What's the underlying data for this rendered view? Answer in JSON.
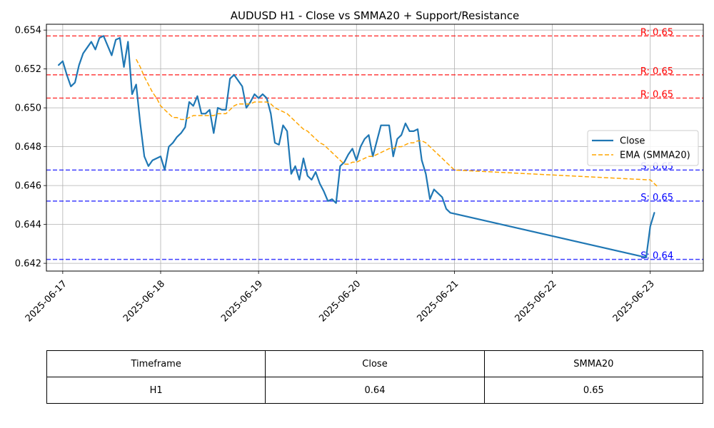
{
  "chart_data": {
    "type": "line",
    "title": "AUDUSD H1 - Close vs SMMA20 + Support/Resistance",
    "xlabel": "",
    "ylabel": "",
    "x_ticks": [
      "2025-06-17",
      "2025-06-18",
      "2025-06-19",
      "2025-06-20",
      "2025-06-21",
      "2025-06-22",
      "2025-06-23"
    ],
    "y_ticks": [
      "0.642",
      "0.644",
      "0.646",
      "0.648",
      "0.650",
      "0.652",
      "0.654"
    ],
    "xlim": [
      "2025-06-16 20:00",
      "2025-06-23 13:00"
    ],
    "ylim": [
      0.6416,
      0.6543
    ],
    "grid": true,
    "legend_position": "center-right",
    "series": [
      {
        "name": "Close",
        "color": "#1f77b4",
        "style": "solid",
        "points": [
          [
            "2025-06-16 23:00",
            0.6522
          ],
          [
            "2025-06-17 00:00",
            0.6524
          ],
          [
            "2025-06-17 01:00",
            0.6517
          ],
          [
            "2025-06-17 02:00",
            0.6511
          ],
          [
            "2025-06-17 03:00",
            0.6513
          ],
          [
            "2025-06-17 04:00",
            0.6522
          ],
          [
            "2025-06-17 05:00",
            0.6528
          ],
          [
            "2025-06-17 06:00",
            0.6531
          ],
          [
            "2025-06-17 07:00",
            0.6534
          ],
          [
            "2025-06-17 08:00",
            0.653
          ],
          [
            "2025-06-17 09:00",
            0.6536
          ],
          [
            "2025-06-17 10:00",
            0.6537
          ],
          [
            "2025-06-17 11:00",
            0.6532
          ],
          [
            "2025-06-17 12:00",
            0.6527
          ],
          [
            "2025-06-17 13:00",
            0.6535
          ],
          [
            "2025-06-17 14:00",
            0.6536
          ],
          [
            "2025-06-17 15:00",
            0.6521
          ],
          [
            "2025-06-17 16:00",
            0.6534
          ],
          [
            "2025-06-17 17:00",
            0.6507
          ],
          [
            "2025-06-17 18:00",
            0.6512
          ],
          [
            "2025-06-17 19:00",
            0.6492
          ],
          [
            "2025-06-17 20:00",
            0.6475
          ],
          [
            "2025-06-17 21:00",
            0.647
          ],
          [
            "2025-06-17 22:00",
            0.6473
          ],
          [
            "2025-06-17 23:00",
            0.6474
          ],
          [
            "2025-06-18 00:00",
            0.6475
          ],
          [
            "2025-06-18 01:00",
            0.6468
          ],
          [
            "2025-06-18 02:00",
            0.648
          ],
          [
            "2025-06-18 03:00",
            0.6482
          ],
          [
            "2025-06-18 04:00",
            0.6485
          ],
          [
            "2025-06-18 05:00",
            0.6487
          ],
          [
            "2025-06-18 06:00",
            0.649
          ],
          [
            "2025-06-18 07:00",
            0.6503
          ],
          [
            "2025-06-18 08:00",
            0.6501
          ],
          [
            "2025-06-18 09:00",
            0.6506
          ],
          [
            "2025-06-18 10:00",
            0.6497
          ],
          [
            "2025-06-18 11:00",
            0.6497
          ],
          [
            "2025-06-18 12:00",
            0.6499
          ],
          [
            "2025-06-18 13:00",
            0.6487
          ],
          [
            "2025-06-18 14:00",
            0.65
          ],
          [
            "2025-06-18 15:00",
            0.6499
          ],
          [
            "2025-06-18 16:00",
            0.6499
          ],
          [
            "2025-06-18 17:00",
            0.6515
          ],
          [
            "2025-06-18 18:00",
            0.6517
          ],
          [
            "2025-06-18 19:00",
            0.6514
          ],
          [
            "2025-06-18 20:00",
            0.6511
          ],
          [
            "2025-06-18 21:00",
            0.65
          ],
          [
            "2025-06-18 22:00",
            0.6503
          ],
          [
            "2025-06-18 23:00",
            0.6507
          ],
          [
            "2025-06-19 00:00",
            0.6505
          ],
          [
            "2025-06-19 01:00",
            0.6507
          ],
          [
            "2025-06-19 02:00",
            0.6505
          ],
          [
            "2025-06-19 03:00",
            0.6497
          ],
          [
            "2025-06-19 04:00",
            0.6482
          ],
          [
            "2025-06-19 05:00",
            0.6481
          ],
          [
            "2025-06-19 06:00",
            0.6491
          ],
          [
            "2025-06-19 07:00",
            0.6488
          ],
          [
            "2025-06-19 08:00",
            0.6466
          ],
          [
            "2025-06-19 09:00",
            0.647
          ],
          [
            "2025-06-19 10:00",
            0.6463
          ],
          [
            "2025-06-19 11:00",
            0.6474
          ],
          [
            "2025-06-19 12:00",
            0.6465
          ],
          [
            "2025-06-19 13:00",
            0.6463
          ],
          [
            "2025-06-19 14:00",
            0.6467
          ],
          [
            "2025-06-19 15:00",
            0.6461
          ],
          [
            "2025-06-19 16:00",
            0.6457
          ],
          [
            "2025-06-19 17:00",
            0.6452
          ],
          [
            "2025-06-19 18:00",
            0.6453
          ],
          [
            "2025-06-19 19:00",
            0.6451
          ],
          [
            "2025-06-19 20:00",
            0.647
          ],
          [
            "2025-06-19 21:00",
            0.6472
          ],
          [
            "2025-06-19 22:00",
            0.6476
          ],
          [
            "2025-06-19 23:00",
            0.6479
          ],
          [
            "2025-06-20 00:00",
            0.6473
          ],
          [
            "2025-06-20 01:00",
            0.648
          ],
          [
            "2025-06-20 02:00",
            0.6484
          ],
          [
            "2025-06-20 03:00",
            0.6486
          ],
          [
            "2025-06-20 04:00",
            0.6475
          ],
          [
            "2025-06-20 05:00",
            0.6483
          ],
          [
            "2025-06-20 06:00",
            0.6491
          ],
          [
            "2025-06-20 07:00",
            0.6491
          ],
          [
            "2025-06-20 08:00",
            0.6491
          ],
          [
            "2025-06-20 09:00",
            0.6475
          ],
          [
            "2025-06-20 10:00",
            0.6484
          ],
          [
            "2025-06-20 11:00",
            0.6486
          ],
          [
            "2025-06-20 12:00",
            0.6492
          ],
          [
            "2025-06-20 13:00",
            0.6488
          ],
          [
            "2025-06-20 14:00",
            0.6488
          ],
          [
            "2025-06-20 15:00",
            0.6489
          ],
          [
            "2025-06-20 16:00",
            0.6473
          ],
          [
            "2025-06-20 17:00",
            0.6466
          ],
          [
            "2025-06-20 18:00",
            0.6453
          ],
          [
            "2025-06-20 19:00",
            0.6458
          ],
          [
            "2025-06-20 20:00",
            0.6456
          ],
          [
            "2025-06-20 21:00",
            0.6454
          ],
          [
            "2025-06-20 22:00",
            0.6448
          ],
          [
            "2025-06-20 23:00",
            0.6446
          ],
          [
            "2025-06-22 23:00",
            0.6423
          ],
          [
            "2025-06-23 00:00",
            0.6439
          ],
          [
            "2025-06-23 01:00",
            0.6446
          ]
        ]
      },
      {
        "name": "EMA (SMMA20)",
        "color": "#ffa500",
        "style": "dashed",
        "points": [
          [
            "2025-06-17 18:00",
            0.6525
          ],
          [
            "2025-06-17 19:00",
            0.6521
          ],
          [
            "2025-06-17 20:00",
            0.6516
          ],
          [
            "2025-06-17 21:00",
            0.6512
          ],
          [
            "2025-06-17 22:00",
            0.6508
          ],
          [
            "2025-06-17 23:00",
            0.6505
          ],
          [
            "2025-06-18 00:00",
            0.6501
          ],
          [
            "2025-06-18 01:00",
            0.6499
          ],
          [
            "2025-06-18 02:00",
            0.6497
          ],
          [
            "2025-06-18 03:00",
            0.6495
          ],
          [
            "2025-06-18 04:00",
            0.6495
          ],
          [
            "2025-06-18 05:00",
            0.6494
          ],
          [
            "2025-06-18 06:00",
            0.6494
          ],
          [
            "2025-06-18 07:00",
            0.6495
          ],
          [
            "2025-06-18 08:00",
            0.6496
          ],
          [
            "2025-06-18 09:00",
            0.6496
          ],
          [
            "2025-06-18 10:00",
            0.6496
          ],
          [
            "2025-06-18 11:00",
            0.6496
          ],
          [
            "2025-06-18 12:00",
            0.6496
          ],
          [
            "2025-06-18 13:00",
            0.6496
          ],
          [
            "2025-06-18 14:00",
            0.6497
          ],
          [
            "2025-06-18 15:00",
            0.6497
          ],
          [
            "2025-06-18 16:00",
            0.6497
          ],
          [
            "2025-06-18 17:00",
            0.6499
          ],
          [
            "2025-06-18 18:00",
            0.6501
          ],
          [
            "2025-06-18 19:00",
            0.6502
          ],
          [
            "2025-06-18 20:00",
            0.6502
          ],
          [
            "2025-06-18 21:00",
            0.6502
          ],
          [
            "2025-06-18 22:00",
            0.6502
          ],
          [
            "2025-06-18 23:00",
            0.6503
          ],
          [
            "2025-06-19 00:00",
            0.6503
          ],
          [
            "2025-06-19 01:00",
            0.6503
          ],
          [
            "2025-06-19 02:00",
            0.6503
          ],
          [
            "2025-06-19 03:00",
            0.6502
          ],
          [
            "2025-06-19 04:00",
            0.65
          ],
          [
            "2025-06-19 05:00",
            0.6499
          ],
          [
            "2025-06-19 06:00",
            0.6498
          ],
          [
            "2025-06-19 07:00",
            0.6497
          ],
          [
            "2025-06-19 08:00",
            0.6495
          ],
          [
            "2025-06-19 09:00",
            0.6493
          ],
          [
            "2025-06-19 10:00",
            0.6491
          ],
          [
            "2025-06-19 11:00",
            0.6489
          ],
          [
            "2025-06-19 12:00",
            0.6488
          ],
          [
            "2025-06-19 13:00",
            0.6486
          ],
          [
            "2025-06-19 14:00",
            0.6484
          ],
          [
            "2025-06-19 15:00",
            0.6482
          ],
          [
            "2025-06-19 16:00",
            0.6481
          ],
          [
            "2025-06-19 17:00",
            0.6479
          ],
          [
            "2025-06-19 18:00",
            0.6477
          ],
          [
            "2025-06-19 19:00",
            0.6475
          ],
          [
            "2025-06-19 20:00",
            0.6473
          ],
          [
            "2025-06-19 21:00",
            0.6471
          ],
          [
            "2025-06-19 22:00",
            0.6471
          ],
          [
            "2025-06-19 23:00",
            0.6472
          ],
          [
            "2025-06-20 00:00",
            0.6472
          ],
          [
            "2025-06-20 01:00",
            0.6473
          ],
          [
            "2025-06-20 02:00",
            0.6474
          ],
          [
            "2025-06-20 03:00",
            0.6475
          ],
          [
            "2025-06-20 04:00",
            0.6475
          ],
          [
            "2025-06-20 05:00",
            0.6476
          ],
          [
            "2025-06-20 06:00",
            0.6477
          ],
          [
            "2025-06-20 07:00",
            0.6478
          ],
          [
            "2025-06-20 08:00",
            0.6479
          ],
          [
            "2025-06-20 09:00",
            0.6479
          ],
          [
            "2025-06-20 10:00",
            0.648
          ],
          [
            "2025-06-20 11:00",
            0.648
          ],
          [
            "2025-06-20 12:00",
            0.6481
          ],
          [
            "2025-06-20 13:00",
            0.6482
          ],
          [
            "2025-06-20 14:00",
            0.6482
          ],
          [
            "2025-06-20 15:00",
            0.6483
          ],
          [
            "2025-06-20 16:00",
            0.6483
          ],
          [
            "2025-06-20 17:00",
            0.6482
          ],
          [
            "2025-06-20 18:00",
            0.648
          ],
          [
            "2025-06-20 19:00",
            0.6478
          ],
          [
            "2025-06-20 20:00",
            0.6476
          ],
          [
            "2025-06-20 21:00",
            0.6474
          ],
          [
            "2025-06-20 22:00",
            0.6472
          ],
          [
            "2025-06-20 23:00",
            0.647
          ],
          [
            "2025-06-21 00:00",
            0.6468
          ],
          [
            "2025-06-22 23:00",
            0.6463
          ],
          [
            "2025-06-23 00:00",
            0.6463
          ],
          [
            "2025-06-23 01:00",
            0.6461
          ],
          [
            "2025-06-23 02:00",
            0.6459
          ]
        ]
      }
    ],
    "levels": [
      {
        "kind": "resistance",
        "value": 0.6537,
        "label": "R: 0.65",
        "color": "#ff0000"
      },
      {
        "kind": "resistance",
        "value": 0.6517,
        "label": "R: 0.65",
        "color": "#ff0000"
      },
      {
        "kind": "resistance",
        "value": 0.6505,
        "label": "R: 0.65",
        "color": "#ff0000"
      },
      {
        "kind": "support",
        "value": 0.6468,
        "label": "S: 0.65",
        "color": "#0000ff"
      },
      {
        "kind": "support",
        "value": 0.6452,
        "label": "S: 0.65",
        "color": "#0000ff"
      },
      {
        "kind": "support",
        "value": 0.6422,
        "label": "S: 0.64",
        "color": "#0000ff"
      }
    ]
  },
  "table": {
    "headers": [
      "Timeframe",
      "Close",
      "SMMA20"
    ],
    "rows": [
      [
        "H1",
        "0.64",
        "0.65"
      ]
    ]
  }
}
